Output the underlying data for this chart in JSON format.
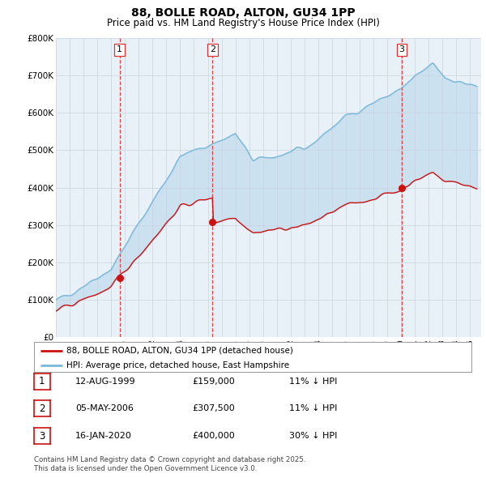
{
  "title1": "88, BOLLE ROAD, ALTON, GU34 1PP",
  "title2": "Price paid vs. HM Land Registry's House Price Index (HPI)",
  "ylim": [
    0,
    800000
  ],
  "yticks": [
    0,
    100000,
    200000,
    300000,
    400000,
    500000,
    600000,
    700000,
    800000
  ],
  "ytick_labels": [
    "£0",
    "£100K",
    "£200K",
    "£300K",
    "£400K",
    "£500K",
    "£600K",
    "£700K",
    "£800K"
  ],
  "bg_color": "#e8f0f8",
  "grid_color": "#c8d4e0",
  "hpi_color": "#7ab8d8",
  "price_color": "#cc1111",
  "dashed_line_color": "#dd3333",
  "purchase1_x": 1999.62,
  "purchase1_y": 159000,
  "purchase2_x": 2006.34,
  "purchase2_y": 307500,
  "purchase3_x": 2020.04,
  "purchase3_y": 400000,
  "legend_label_price": "88, BOLLE ROAD, ALTON, GU34 1PP (detached house)",
  "legend_label_hpi": "HPI: Average price, detached house, East Hampshire",
  "table_data": [
    {
      "num": "1",
      "date": "12-AUG-1999",
      "price": "£159,000",
      "hpi": "11% ↓ HPI"
    },
    {
      "num": "2",
      "date": "05-MAY-2006",
      "price": "£307,500",
      "hpi": "11% ↓ HPI"
    },
    {
      "num": "3",
      "date": "16-JAN-2020",
      "price": "£400,000",
      "hpi": "30% ↓ HPI"
    }
  ],
  "footnote1": "Contains HM Land Registry data © Crown copyright and database right 2025.",
  "footnote2": "This data is licensed under the Open Government Licence v3.0.",
  "xmin": 1995.0,
  "xmax": 2025.8
}
